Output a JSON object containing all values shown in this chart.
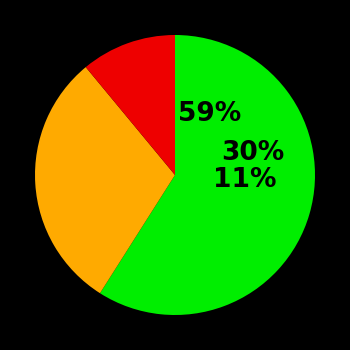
{
  "slices": [
    59,
    30,
    11
  ],
  "colors": [
    "#00ee00",
    "#ffaa00",
    "#ee0000"
  ],
  "labels": [
    "59%",
    "30%",
    "11%"
  ],
  "label_radii": [
    0.5,
    0.58,
    0.5
  ],
  "background_color": "#000000",
  "text_color": "#000000",
  "label_fontsize": 19,
  "label_fontweight": "bold",
  "startangle": 90,
  "figsize": [
    3.5,
    3.5
  ],
  "dpi": 100
}
